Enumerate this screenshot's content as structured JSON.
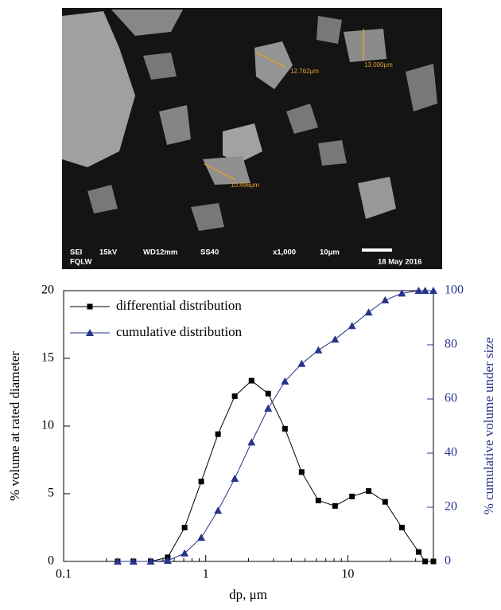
{
  "micrograph": {
    "measurements": [
      "12.762μm",
      "13.000μm",
      "10.496μm"
    ],
    "info": [
      "SEI",
      "15kV",
      "WD12mm",
      "SS40",
      "x1,000",
      "10μm",
      "18 May 2016",
      "FQLW"
    ]
  },
  "chart_data": {
    "type": "line",
    "xlabel": "dp, μm",
    "ylabel": "% volume at rated diameter",
    "y2label": "% cumulative volume under size",
    "xscale": "log",
    "xlim": [
      0.1,
      40
    ],
    "xticks": [
      0.1,
      1,
      10
    ],
    "ylim": [
      0,
      20
    ],
    "yticks": [
      0,
      5,
      10,
      15,
      20
    ],
    "y2lim": [
      0,
      100
    ],
    "y2ticks": [
      0,
      20,
      40,
      60,
      80,
      100
    ],
    "legend": "upper left",
    "x": [
      0.24,
      0.31,
      0.41,
      0.54,
      0.71,
      0.93,
      1.22,
      1.6,
      2.1,
      2.75,
      3.61,
      4.73,
      6.2,
      8.13,
      10.7,
      14,
      18.3,
      24,
      31.5,
      35,
      40
    ],
    "series": [
      {
        "name": "differential distribution",
        "color": "#000000",
        "marker": "square",
        "values": [
          0,
          0,
          0,
          0.3,
          2.5,
          5.9,
          9.4,
          12.2,
          13.35,
          12.4,
          9.8,
          6.6,
          4.5,
          4.1,
          4.8,
          5.2,
          4.4,
          2.5,
          0.7,
          0,
          0
        ]
      },
      {
        "name": "cumulative distribution",
        "color": "#27348b",
        "marker": "triangle",
        "axis": "y2",
        "values": [
          0,
          0,
          0,
          0.3,
          3,
          8.8,
          18.8,
          30.6,
          44,
          56.5,
          66.5,
          73,
          78,
          82,
          87,
          92,
          96.5,
          99,
          100,
          100,
          100
        ]
      }
    ]
  }
}
